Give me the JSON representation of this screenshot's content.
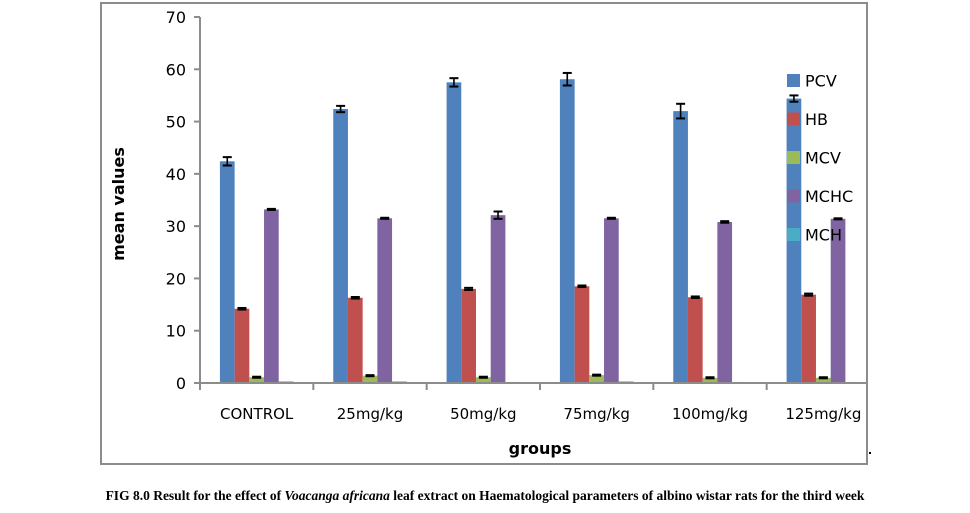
{
  "chart_data": {
    "type": "bar",
    "title": "",
    "xlabel": "groups",
    "ylabel": "mean values",
    "ylim": [
      0,
      70
    ],
    "yticks": [
      0,
      10,
      20,
      30,
      40,
      50,
      60,
      70
    ],
    "grid": false,
    "legend_position": "right",
    "categories": [
      "CONTROL",
      "25mg/kg",
      "50mg/kg",
      "75mg/kg",
      "100mg/kg",
      "125mg/kg"
    ],
    "series": [
      {
        "name": "PCV",
        "color": "#4f81bd",
        "values": [
          42.4,
          52.4,
          57.5,
          58.1,
          52.0,
          54.4
        ],
        "errors": [
          0.8,
          0.6,
          0.8,
          1.2,
          1.4,
          0.6
        ]
      },
      {
        "name": "HB",
        "color": "#c0504d",
        "values": [
          14.2,
          16.3,
          18.0,
          18.5,
          16.4,
          16.9
        ],
        "errors": [
          0.15,
          0.15,
          0.2,
          0.15,
          0.15,
          0.2
        ]
      },
      {
        "name": "MCV",
        "color": "#9bbb59",
        "values": [
          1.1,
          1.4,
          1.1,
          1.5,
          1.0,
          1.0
        ],
        "errors": [
          0.1,
          0.1,
          0.1,
          0.1,
          0.1,
          0.1
        ]
      },
      {
        "name": "MCHC",
        "color": "#8064a2",
        "values": [
          33.2,
          31.5,
          32.1,
          31.5,
          30.8,
          31.4
        ],
        "errors": [
          0.1,
          0.1,
          0.7,
          0.1,
          0.15,
          0.1
        ]
      },
      {
        "name": "MCH",
        "color": "#4bacc6",
        "values": [
          0.3,
          0.3,
          0.2,
          0.3,
          0.2,
          0.2
        ],
        "errors": [
          0,
          0,
          0,
          0,
          0,
          0
        ]
      }
    ]
  },
  "caption": {
    "prefix": "FIG 8.0 Result for the effect of ",
    "species": "Voacanga africana",
    "suffix": " leaf extract on Haematological parameters of albino wistar rats for the third week"
  }
}
